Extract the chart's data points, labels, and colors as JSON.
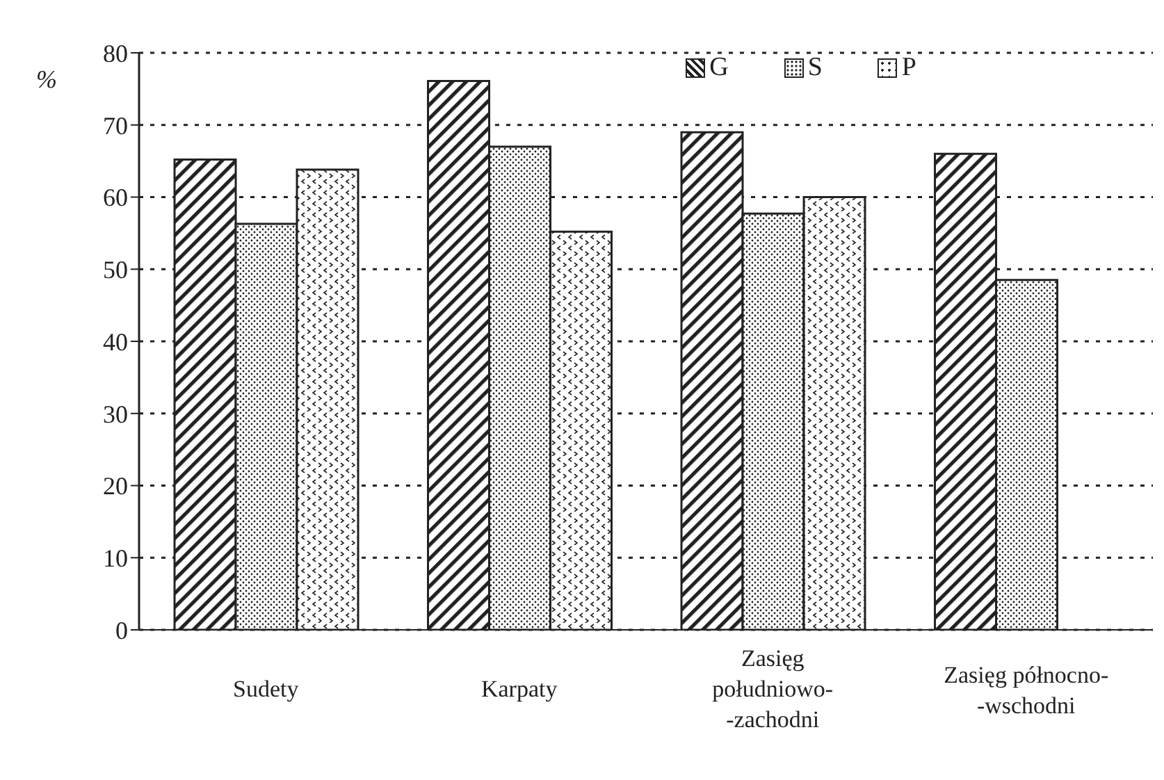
{
  "chart_data": {
    "type": "bar",
    "ylabel": "%",
    "categories": [
      "Sudety",
      "Karpaty",
      "Zasięg\npołudniowo-\n-zachodni",
      "Zasięg północno-\n-wschodni"
    ],
    "series": [
      {
        "name": "G",
        "color": "#222222",
        "values": [
          65.2,
          76.1,
          69,
          66
        ]
      },
      {
        "name": "S",
        "color": "#222222",
        "values": [
          56.3,
          67,
          57.7,
          48.5
        ]
      },
      {
        "name": "P",
        "color": "#222222",
        "values": [
          63.8,
          55.2,
          60,
          null
        ]
      }
    ],
    "ylim": [
      0,
      80
    ],
    "yticks": [
      0,
      10,
      20,
      30,
      40,
      50,
      60,
      70,
      80
    ],
    "grid": "y",
    "legend": "top right"
  }
}
